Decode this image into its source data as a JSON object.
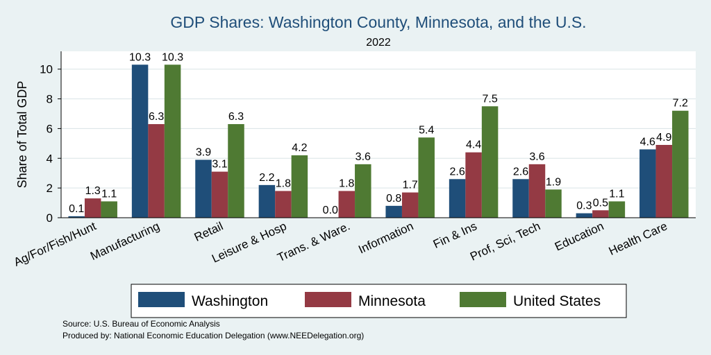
{
  "chart_data": {
    "type": "bar",
    "title": "GDP Shares: Washington County, Minnesota, and the U.S.",
    "subtitle": "2022",
    "ylabel": "Share of Total GDP",
    "xlabel": "",
    "ylim": [
      0,
      11.2
    ],
    "yticks": [
      0,
      2,
      4,
      6,
      8,
      10
    ],
    "grid": "horizontal",
    "legend_position": "bottom",
    "categories": [
      "Ag/For/Fish/Hunt",
      "Manufacturing",
      "Retail",
      "Leisure & Hosp",
      "Trans. & Ware.",
      "Information",
      "Fin & Ins",
      "Prof, Sci, Tech",
      "Education",
      "Health Care"
    ],
    "series": [
      {
        "name": "Washington",
        "color": "#1f4e79",
        "values": [
          0.1,
          10.3,
          3.9,
          2.2,
          0.0,
          0.8,
          2.6,
          2.6,
          0.3,
          4.6
        ],
        "labels": [
          "0.1",
          "10.3",
          "3.9",
          "2.2",
          "0.0",
          "0.8",
          "2.6",
          "2.6",
          "0.3",
          "4.6"
        ]
      },
      {
        "name": "Minnesota",
        "color": "#943a44",
        "values": [
          1.3,
          6.3,
          3.1,
          1.8,
          1.8,
          1.7,
          4.4,
          3.6,
          0.5,
          4.9
        ],
        "labels": [
          "1.3",
          "6.3",
          "3.1",
          "1.8",
          "1.8",
          "1.7",
          "4.4",
          "3.6",
          "0.5",
          "4.9"
        ]
      },
      {
        "name": "United States",
        "color": "#4f7a33",
        "values": [
          1.1,
          10.3,
          6.3,
          4.2,
          3.6,
          5.4,
          7.5,
          1.9,
          1.1,
          7.2
        ],
        "labels": [
          "1.1",
          "10.3",
          "6.3",
          "4.2",
          "3.6",
          "5.4",
          "7.5",
          "1.9",
          "1.1",
          "7.2"
        ]
      }
    ]
  },
  "footer": {
    "source": "Source: U.S. Bureau of Economic Analysis",
    "produced": "Produced by: National Economic Education Delegation (www.NEEDelegation.org)"
  }
}
